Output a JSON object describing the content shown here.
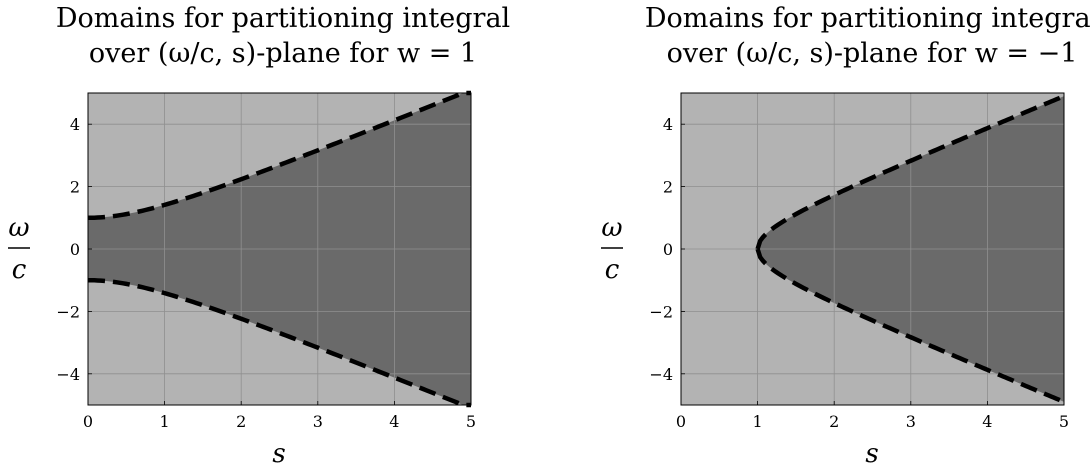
{
  "chart_data": [
    {
      "type": "area",
      "title_line1": "Domains for partitioning integral",
      "title_line2": "over (ω/c, s)-plane for w = 1",
      "xlabel": "s",
      "ylabel_num": "ω",
      "ylabel_den": "c",
      "xlim": [
        0,
        5
      ],
      "ylim": [
        -5,
        5
      ],
      "xticks": [
        0,
        1,
        2,
        3,
        4,
        5
      ],
      "yticks": [
        -4,
        -2,
        0,
        2,
        4
      ],
      "ytick_labels": [
        "−4",
        "−2",
        "0",
        "2",
        "4"
      ],
      "grid": true,
      "boundary": "ω/c = ±sqrt(s² + 1)",
      "boundary_points": {
        "s": [
          0,
          0.5,
          1,
          1.5,
          2,
          2.5,
          3,
          3.5,
          4,
          4.5,
          5
        ],
        "omega_over_c": [
          1.0,
          1.12,
          1.41,
          1.8,
          2.24,
          2.69,
          3.16,
          3.64,
          4.12,
          4.61,
          5.1
        ]
      },
      "regions": {
        "inside": "#6a6a6a",
        "outside": "#b3b3b3"
      },
      "line_style": "dashed",
      "line_color": "#000000"
    },
    {
      "type": "area",
      "title_line1": "Domains for partitioning integral",
      "title_line2": "over (ω/c, s)-plane for w = −1",
      "xlabel": "s",
      "ylabel_num": "ω",
      "ylabel_den": "c",
      "xlim": [
        0,
        5
      ],
      "ylim": [
        -5,
        5
      ],
      "xticks": [
        0,
        1,
        2,
        3,
        4,
        5
      ],
      "yticks": [
        -4,
        -2,
        0,
        2,
        4
      ],
      "ytick_labels": [
        "−4",
        "−2",
        "0",
        "2",
        "4"
      ],
      "grid": true,
      "boundary": "ω/c = ±sqrt(s² − 1)",
      "boundary_points": {
        "s": [
          1,
          1.25,
          1.5,
          2,
          2.5,
          3,
          3.5,
          4,
          4.5,
          5
        ],
        "omega_over_c": [
          0,
          0.75,
          1.12,
          1.73,
          2.29,
          2.83,
          3.35,
          3.87,
          4.39,
          4.9
        ]
      },
      "regions": {
        "inside": "#6a6a6a",
        "outside": "#b3b3b3"
      },
      "line_style": "dashed",
      "line_color": "#000000"
    }
  ]
}
